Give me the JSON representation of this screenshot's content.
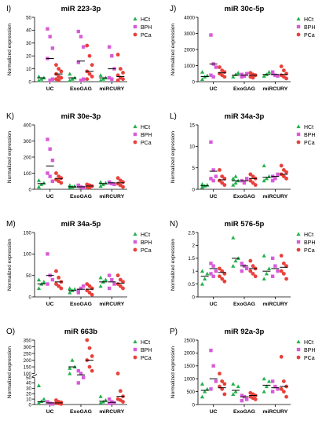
{
  "figure": {
    "legend_labels": [
      "HCt",
      "BPH",
      "PCa"
    ],
    "colors": {
      "HCt": "#22b14c",
      "BPH": "#d85bd8",
      "PCa": "#e8413c",
      "axis": "#000000"
    },
    "ylabel": "Normalized expression"
  },
  "chart_data": [
    {
      "type": "scatter",
      "panel": "I)",
      "title": "miR 223-3p",
      "categories": [
        "UC",
        "ExoGAG",
        "miRCURY"
      ],
      "yticks": [
        0,
        10,
        20,
        30,
        40,
        50
      ],
      "ylim": [
        0,
        50
      ],
      "series": [
        {
          "name": "HCt",
          "groups": [
            [
              1,
              2,
              3,
              4
            ],
            [
              1,
              2,
              3,
              6
            ],
            [
              1,
              2,
              3,
              5
            ]
          ],
          "means": [
            3,
            3,
            3
          ]
        },
        {
          "name": "BPH",
          "groups": [
            [
              41,
              35,
              26,
              18,
              1,
              2
            ],
            [
              39,
              35,
              27,
              15,
              1,
              2
            ],
            [
              27,
              20,
              10,
              3,
              2
            ]
          ],
          "means": [
            18,
            16,
            10
          ]
        },
        {
          "name": "PCa",
          "groups": [
            [
              13,
              10,
              8,
              6,
              4,
              3,
              2,
              1
            ],
            [
              28,
              20,
              13,
              8,
              6,
              4,
              2
            ],
            [
              21,
              10,
              7,
              5,
              3,
              2,
              1
            ]
          ],
          "means": [
            6,
            8,
            4
          ]
        }
      ]
    },
    {
      "type": "scatter",
      "panel": "J)",
      "title": "miR 30c-5p",
      "categories": [
        "UC",
        "ExoGAG",
        "miRCURY"
      ],
      "yticks": [
        0,
        1000,
        2000,
        3000,
        4000
      ],
      "ylim": [
        0,
        4000
      ],
      "series": [
        {
          "name": "HCt",
          "groups": [
            [
              150,
              300,
              380,
              600
            ],
            [
              300,
              450,
              550
            ],
            [
              350,
              450,
              600
            ]
          ],
          "means": [
            320,
            400,
            450
          ]
        },
        {
          "name": "BPH",
          "groups": [
            [
              2900,
              1100,
              900,
              400,
              300
            ],
            [
              450,
              350,
              500,
              300
            ],
            [
              500,
              400,
              350,
              600
            ]
          ],
          "means": [
            1100,
            400,
            450
          ]
        },
        {
          "name": "PCa",
          "groups": [
            [
              900,
              700,
              600,
              500,
              400,
              300
            ],
            [
              550,
              450,
              400,
              300,
              250
            ],
            [
              950,
              700,
              500,
              400,
              300,
              200
            ]
          ],
          "means": [
            550,
            400,
            450
          ]
        }
      ]
    },
    {
      "type": "scatter",
      "panel": "K)",
      "title": "miR 30e-3p",
      "categories": [
        "UC",
        "ExoGAG",
        "miRCURY"
      ],
      "yticks": [
        0,
        100,
        200,
        300,
        400
      ],
      "ylim": [
        0,
        400
      ],
      "series": [
        {
          "name": "HCt",
          "groups": [
            [
              15,
              30,
              40,
              55
            ],
            [
              10,
              15,
              20,
              25
            ],
            [
              20,
              30,
              40,
              45
            ]
          ],
          "means": [
            35,
            15,
            35
          ]
        },
        {
          "name": "BPH",
          "groups": [
            [
              310,
              250,
              180,
              100,
              80,
              50
            ],
            [
              20,
              15,
              10,
              25
            ],
            [
              40,
              35,
              30,
              45
            ]
          ],
          "means": [
            145,
            15,
            40
          ]
        },
        {
          "name": "PCa",
          "groups": [
            [
              100,
              80,
              70,
              60,
              50,
              40
            ],
            [
              30,
              25,
              20,
              15,
              10
            ],
            [
              70,
              55,
              45,
              35,
              25,
              15
            ]
          ],
          "means": [
            65,
            20,
            40
          ]
        }
      ]
    },
    {
      "type": "scatter",
      "panel": "L)",
      "title": "miR 34a-3p",
      "categories": [
        "UC",
        "ExoGAG",
        "miRCURY"
      ],
      "yticks": [
        0,
        5,
        10,
        15
      ],
      "ylim": [
        0,
        15
      ],
      "series": [
        {
          "name": "HCt",
          "groups": [
            [
              0.5,
              0.8,
              1,
              1.2
            ],
            [
              1,
              1.5,
              2,
              2.5,
              3
            ],
            [
              2,
              2.5,
              3,
              5.5
            ]
          ],
          "means": [
            0.8,
            2,
            2.8
          ]
        },
        {
          "name": "BPH",
          "groups": [
            [
              11,
              4.5,
              3,
              2.5,
              2
            ],
            [
              2,
              1.5,
              2.5
            ],
            [
              3,
              2.5,
              3.5,
              2
            ]
          ],
          "means": [
            4.2,
            2,
            3
          ]
        },
        {
          "name": "PCa",
          "groups": [
            [
              4.5,
              3,
              2.5,
              2,
              1.5,
              1
            ],
            [
              3.5,
              3,
              2.5,
              2,
              1.5,
              1
            ],
            [
              5.5,
              4.5,
              4,
              3.5,
              3,
              2.5
            ]
          ],
          "means": [
            2.2,
            2.5,
            3.5
          ]
        }
      ]
    },
    {
      "type": "scatter",
      "panel": "M)",
      "title": "miR 34a-5p",
      "categories": [
        "UC",
        "ExoGAG",
        "miRCURY"
      ],
      "yticks": [
        0,
        50,
        100,
        150
      ],
      "ylim": [
        0,
        150
      ],
      "series": [
        {
          "name": "HCt",
          "groups": [
            [
              20,
              30,
              35,
              40
            ],
            [
              10,
              15,
              18,
              20
            ],
            [
              25,
              35,
              40,
              45
            ]
          ],
          "means": [
            30,
            15,
            35
          ]
        },
        {
          "name": "BPH",
          "groups": [
            [
              100,
              50,
              40,
              30
            ],
            [
              15,
              20,
              25,
              10
            ],
            [
              50,
              40,
              30,
              20
            ]
          ],
          "means": [
            50,
            18,
            35
          ]
        },
        {
          "name": "PCa",
          "groups": [
            [
              60,
              45,
              35,
              30,
              25,
              20
            ],
            [
              30,
              25,
              20,
              15,
              10,
              5
            ],
            [
              50,
              40,
              35,
              30,
              25,
              20
            ]
          ],
          "means": [
            35,
            18,
            32
          ]
        }
      ]
    },
    {
      "type": "scatter",
      "panel": "N)",
      "title": "miR 576-5p",
      "categories": [
        "UC",
        "ExoGAG",
        "miRCURY"
      ],
      "yticks": [
        0.0,
        0.5,
        1.0,
        1.5,
        2.0,
        2.5
      ],
      "ylim": [
        0,
        2.5
      ],
      "series": [
        {
          "name": "HCt",
          "groups": [
            [
              0.5,
              0.7,
              0.9,
              1.0
            ],
            [
              1.2,
              1.4,
              1.5,
              2.3
            ],
            [
              0.7,
              0.9,
              1.1,
              1.6
            ]
          ],
          "means": [
            0.8,
            1.5,
            1.0
          ]
        },
        {
          "name": "BPH",
          "groups": [
            [
              1.3,
              1.2,
              1.0,
              0.9,
              0.8
            ],
            [
              1.3,
              1.2,
              1.1,
              1.0
            ],
            [
              1.5,
              1.2,
              1.0,
              0.8
            ]
          ],
          "means": [
            1.1,
            1.2,
            1.1
          ]
        },
        {
          "name": "PCa",
          "groups": [
            [
              1.1,
              1.0,
              0.9,
              0.8,
              0.7,
              0.6
            ],
            [
              1.4,
              1.2,
              1.1,
              1.0,
              0.9,
              0.8
            ],
            [
              1.6,
              1.3,
              1.2,
              1.0,
              0.9,
              0.7
            ]
          ],
          "means": [
            0.95,
            1.1,
            1.15
          ]
        }
      ]
    },
    {
      "type": "scatter",
      "panel": "O)",
      "title": "miR 663b",
      "categories": [
        "UC",
        "ExoGAG",
        "miRCURY"
      ],
      "yticks": [
        0,
        10,
        20,
        30,
        40,
        50,
        100,
        150,
        200,
        250,
        300,
        350
      ],
      "ybreak": [
        50,
        100
      ],
      "ylim": [
        0,
        350
      ],
      "series": [
        {
          "name": "HCt",
          "groups": [
            [
              3,
              6,
              10,
              35
            ],
            [
              140,
              200,
              150,
              100
            ],
            [
              3,
              5,
              8,
              15
            ]
          ],
          "means": [
            5,
            150,
            6
          ]
        },
        {
          "name": "BPH",
          "groups": [
            [
              5,
              2,
              1
            ],
            [
              120,
              100,
              70,
              40
            ],
            [
              10,
              5,
              3,
              2
            ]
          ],
          "means": [
            3,
            90,
            4
          ]
        },
        {
          "name": "PCa",
          "groups": [
            [
              8,
              5,
              4,
              3,
              2,
              1
            ],
            [
              350,
              290,
              230,
              200,
              150,
              120
            ],
            [
              100,
              25,
              15,
              10,
              8,
              5
            ]
          ],
          "means": [
            3,
            200,
            15
          ]
        }
      ]
    },
    {
      "type": "scatter",
      "panel": "P)",
      "title": "miR 92a-3p",
      "categories": [
        "UC",
        "ExoGAG",
        "miRCURY"
      ],
      "yticks": [
        0,
        500,
        1000,
        1500,
        2000,
        2500
      ],
      "ylim": [
        0,
        2500
      ],
      "series": [
        {
          "name": "HCt",
          "groups": [
            [
              300,
              500,
              600,
              800
            ],
            [
              400,
              500,
              700,
              800
            ],
            [
              500,
              700,
              900,
              1000
            ]
          ],
          "means": [
            550,
            550,
            750
          ]
        },
        {
          "name": "BPH",
          "groups": [
            [
              2100,
              1500,
              900,
              600
            ],
            [
              350,
              300,
              200,
              150
            ],
            [
              900,
              700,
              600,
              500
            ]
          ],
          "means": [
            1000,
            300,
            650
          ]
        },
        {
          "name": "PCa",
          "groups": [
            [
              1200,
              900,
              800,
              700,
              600,
              400
            ],
            [
              450,
              400,
              350,
              300,
              250,
              200
            ],
            [
              1850,
              900,
              700,
              600,
              500,
              300
            ]
          ],
          "means": [
            650,
            350,
            700
          ]
        }
      ]
    }
  ]
}
